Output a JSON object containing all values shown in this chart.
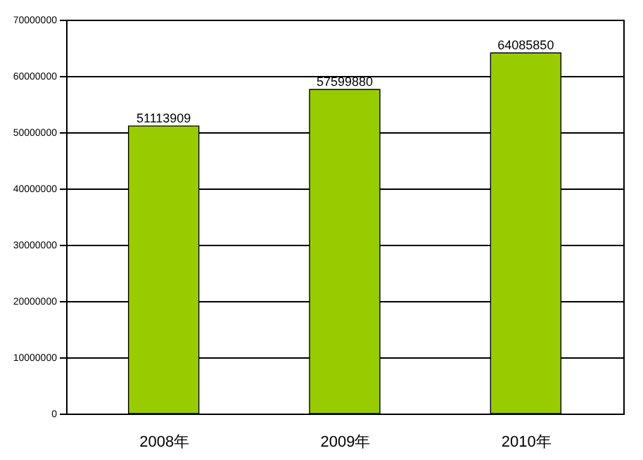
{
  "chart_data": {
    "type": "bar",
    "categories": [
      "2008年",
      "2009年",
      "2010年"
    ],
    "values": [
      51113909,
      57599880,
      64085850
    ],
    "color": "#99cc00",
    "ylim": [
      0,
      70000000
    ],
    "yticks": [
      0,
      10000000,
      20000000,
      30000000,
      40000000,
      50000000,
      60000000,
      70000000
    ],
    "grid": "y",
    "data_labels": true
  }
}
